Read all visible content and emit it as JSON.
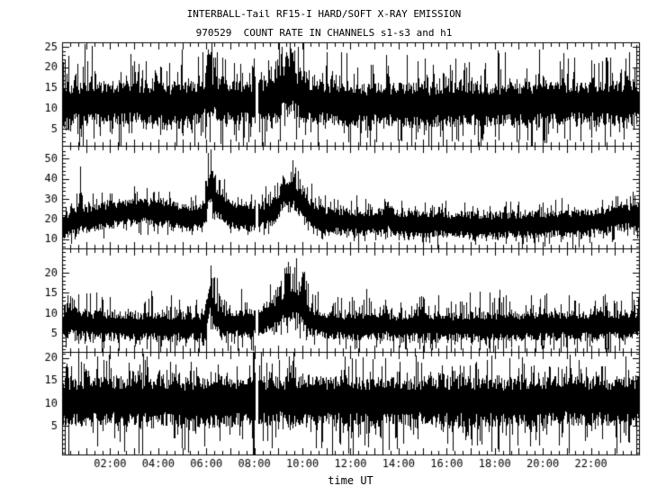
{
  "chart_data": {
    "type": "line",
    "title": "INTERBALL-Tail RF15-I HARD/SOFT X-RAY EMISSION",
    "subtitle": "970529  COUNT RATE IN CHANNELS s1-s3 and h1",
    "xlabel": "time UT",
    "grid": false,
    "legend_position": "none",
    "colors": {
      "data": "#000000",
      "frame": "#000000",
      "text": "#000000",
      "background": "#ffffff"
    },
    "x_axis": {
      "lim_hours": [
        0,
        24
      ],
      "minor_tick_hours": 0.333333,
      "major_tick_hours": 1,
      "label_step_hours": 2,
      "tick_labels": [
        "02:00",
        "04:00",
        "06:00",
        "08:00",
        "10:00",
        "12:00",
        "14:00",
        "16:00",
        "18:00",
        "20:00",
        "22:00"
      ]
    },
    "panels": [
      {
        "channel": "s1",
        "ylim": [
          0.9,
          26.1
        ],
        "yticks": [
          5,
          10,
          15,
          20,
          25
        ],
        "y_minor_step": 1,
        "baseline_mean_by_hour": [
          [
            0,
            11
          ],
          [
            1.5,
            11.5
          ],
          [
            3,
            11.5
          ],
          [
            5,
            11
          ],
          [
            6.2,
            12
          ],
          [
            7,
            11.5
          ],
          [
            8.5,
            11.5
          ],
          [
            9.5,
            12.5
          ],
          [
            10.5,
            11.5
          ],
          [
            12,
            11
          ],
          [
            15,
            11
          ],
          [
            18,
            11
          ],
          [
            21,
            11.5
          ],
          [
            24,
            11.5
          ]
        ],
        "noise_core": 4.0,
        "spike_up": 5.0,
        "spike_down": 5.0,
        "flares": [
          {
            "t": 0.12,
            "sigma": 0.05,
            "amp": 0,
            "spike": 9
          },
          {
            "t": 6.15,
            "sigma": 0.18,
            "amp": 1.5,
            "spike": 7
          },
          {
            "t": 9.0,
            "sigma": 0.2,
            "amp": 1,
            "spike": 4
          },
          {
            "t": 9.55,
            "sigma": 0.3,
            "amp": 2,
            "spike": 6
          }
        ],
        "dropouts": [
          [
            8.02,
            8.14
          ]
        ],
        "full_height_spikes": []
      },
      {
        "channel": "s2",
        "ylim": [
          5.3,
          56.5
        ],
        "yticks": [
          10,
          20,
          30,
          40,
          50
        ],
        "y_minor_step": 2,
        "baseline_mean_by_hour": [
          [
            0,
            17
          ],
          [
            0.8,
            19
          ],
          [
            2,
            22.5
          ],
          [
            3,
            24
          ],
          [
            4.2,
            23.5
          ],
          [
            5.2,
            21
          ],
          [
            5.8,
            21.5
          ],
          [
            6.6,
            23
          ],
          [
            7.2,
            21.5
          ],
          [
            8,
            21
          ],
          [
            8.6,
            22.5
          ],
          [
            9.1,
            24
          ],
          [
            9.55,
            25
          ],
          [
            10,
            23.5
          ],
          [
            10.5,
            20.5
          ],
          [
            11.2,
            19
          ],
          [
            12.5,
            18
          ],
          [
            13.5,
            19
          ],
          [
            14.5,
            17.5
          ],
          [
            16,
            17.5
          ],
          [
            18,
            17
          ],
          [
            20,
            17.5
          ],
          [
            22,
            18.5
          ],
          [
            23,
            20.5
          ],
          [
            24,
            22
          ]
        ],
        "noise_core": 5.0,
        "spike_up": 4.5,
        "spike_down": 4.0,
        "flares": [
          {
            "t": 0.75,
            "sigma": 0.035,
            "amp": 3,
            "spike": 24
          },
          {
            "t": 6.14,
            "sigma": 0.1,
            "amp": 13,
            "spike": 15
          },
          {
            "t": 6.45,
            "sigma": 0.25,
            "amp": 4,
            "spike": 5
          },
          {
            "t": 9.15,
            "sigma": 0.12,
            "amp": 3,
            "spike": 6
          },
          {
            "t": 9.5,
            "sigma": 0.32,
            "amp": 8,
            "spike": 13
          },
          {
            "t": 13.55,
            "sigma": 0.08,
            "amp": 2,
            "spike": 7
          }
        ],
        "dropouts": [
          [
            8.02,
            8.14
          ]
        ],
        "full_height_spikes": []
      },
      {
        "channel": "s3",
        "ylim": [
          0.4,
          26.0
        ],
        "yticks": [
          5,
          10,
          15,
          20
        ],
        "y_minor_step": 1,
        "baseline_mean_by_hour": [
          [
            0,
            7.5
          ],
          [
            2,
            7
          ],
          [
            5,
            6.8
          ],
          [
            6.5,
            7.2
          ],
          [
            8,
            7.5
          ],
          [
            8.6,
            9
          ],
          [
            9.2,
            9.8
          ],
          [
            9.9,
            9.5
          ],
          [
            10.3,
            8
          ],
          [
            11,
            7
          ],
          [
            13,
            6.8
          ],
          [
            16,
            6.8
          ],
          [
            19,
            6.8
          ],
          [
            22,
            7
          ],
          [
            24,
            7.2
          ]
        ],
        "noise_core": 2.6,
        "spike_up": 3.2,
        "spike_down": 3.0,
        "flares": [
          {
            "t": 0.3,
            "sigma": 0.1,
            "amp": 0.5,
            "spike": 6
          },
          {
            "t": 2.9,
            "sigma": 0.05,
            "amp": 0,
            "spike": 5
          },
          {
            "t": 6.13,
            "sigma": 0.08,
            "amp": 6,
            "spike": 9
          },
          {
            "t": 6.4,
            "sigma": 0.2,
            "amp": 1.5,
            "spike": 3
          },
          {
            "t": 9.45,
            "sigma": 0.3,
            "amp": 2.5,
            "spike": 8
          },
          {
            "t": 9.85,
            "sigma": 0.12,
            "amp": 1.5,
            "spike": 7
          },
          {
            "t": 13.5,
            "sigma": 0.06,
            "amp": 0.5,
            "spike": 6
          }
        ],
        "dropouts": [
          [
            8.02,
            8.14
          ]
        ],
        "full_height_spikes": []
      },
      {
        "channel": "h1",
        "ylim": [
          -1.3,
          21.3
        ],
        "yticks": [
          5,
          10,
          15,
          20
        ],
        "y_minor_step": 1,
        "baseline_mean_by_hour": [
          [
            0,
            10.5
          ],
          [
            3,
            10.8
          ],
          [
            6,
            10.3
          ],
          [
            9,
            10.7
          ],
          [
            12,
            10.4
          ],
          [
            15,
            10.6
          ],
          [
            18,
            10.3
          ],
          [
            21,
            10.7
          ],
          [
            24,
            10.5
          ]
        ],
        "noise_core": 4.2,
        "spike_up": 3.2,
        "spike_down": 5.0,
        "flares": [],
        "dropouts": [
          [
            8.02,
            8.14
          ]
        ],
        "full_height_spikes": [
          7.95
        ]
      }
    ]
  }
}
